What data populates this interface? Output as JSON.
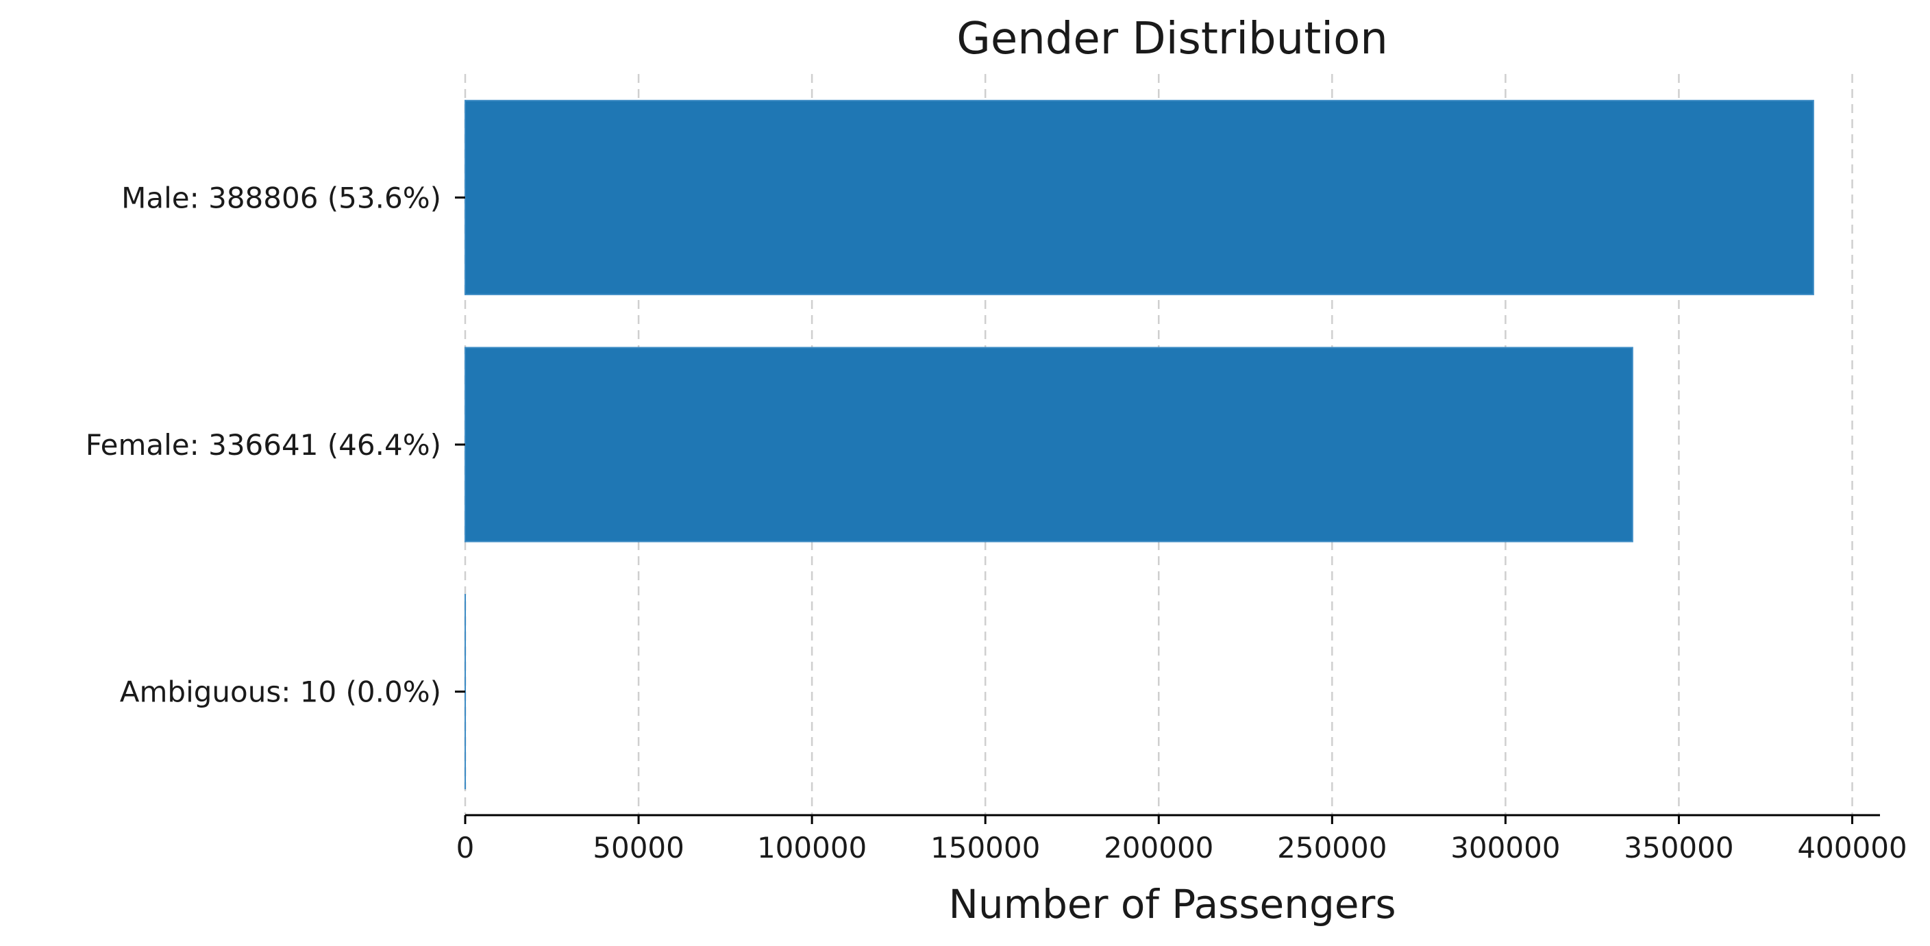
{
  "chart_data": {
    "type": "bar",
    "orientation": "horizontal",
    "title": "Gender Distribution",
    "xlabel": "Number of Passengers",
    "ylabel": "",
    "categories": [
      "Male",
      "Female",
      "Ambiguous"
    ],
    "category_labels": [
      "Male: 388806 (53.6%)",
      "Female: 336641 (46.4%)",
      "Ambiguous: 10 (0.0%)"
    ],
    "values": [
      388806,
      336641,
      10
    ],
    "percentages": [
      53.6,
      46.4,
      0.0
    ],
    "xlim": [
      0,
      408000
    ],
    "xticks": [
      0,
      50000,
      100000,
      150000,
      200000,
      250000,
      300000,
      350000,
      400000
    ],
    "xtick_labels": [
      "0",
      "50000",
      "100000",
      "150000",
      "200000",
      "250000",
      "300000",
      "350000",
      "400000"
    ],
    "grid": "x-axis dashed",
    "bar_color": "#1f77b4",
    "grid_color": "#cfcfcf",
    "legend": "none"
  }
}
